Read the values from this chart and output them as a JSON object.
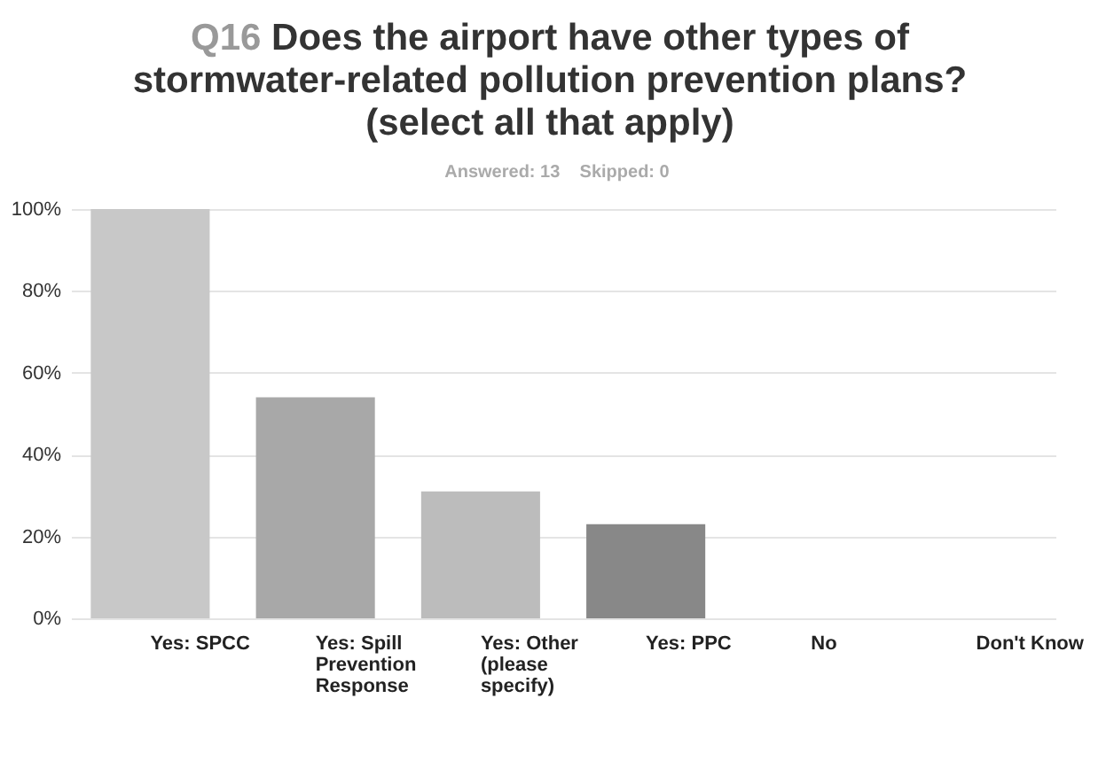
{
  "chart_data": {
    "type": "bar",
    "title": "Q16 Does the airport have other types of stormwater-related pollution prevention plans? (select all that apply)",
    "subtitle": "Answered: 13    Skipped: 0",
    "categories": [
      "Yes: SPCC",
      "Yes: Spill Prevention Response",
      "Yes: Other (please specify)",
      "Yes: PPC",
      "No",
      "Don't Know"
    ],
    "values": [
      100,
      54,
      31,
      23,
      0,
      0
    ],
    "colors": [
      "#c8c8c8",
      "#a8a8a8",
      "#bcbcbc",
      "#888888",
      "#a8a8a8",
      "#bcbcbc"
    ],
    "ylim": [
      0,
      100
    ],
    "yticks": [
      {
        "value": 0,
        "label": "0%"
      },
      {
        "value": 20,
        "label": "20%"
      },
      {
        "value": 40,
        "label": "40%"
      },
      {
        "value": 60,
        "label": "60%"
      },
      {
        "value": 80,
        "label": "80%"
      },
      {
        "value": 100,
        "label": "100%"
      }
    ],
    "grid": "y"
  }
}
